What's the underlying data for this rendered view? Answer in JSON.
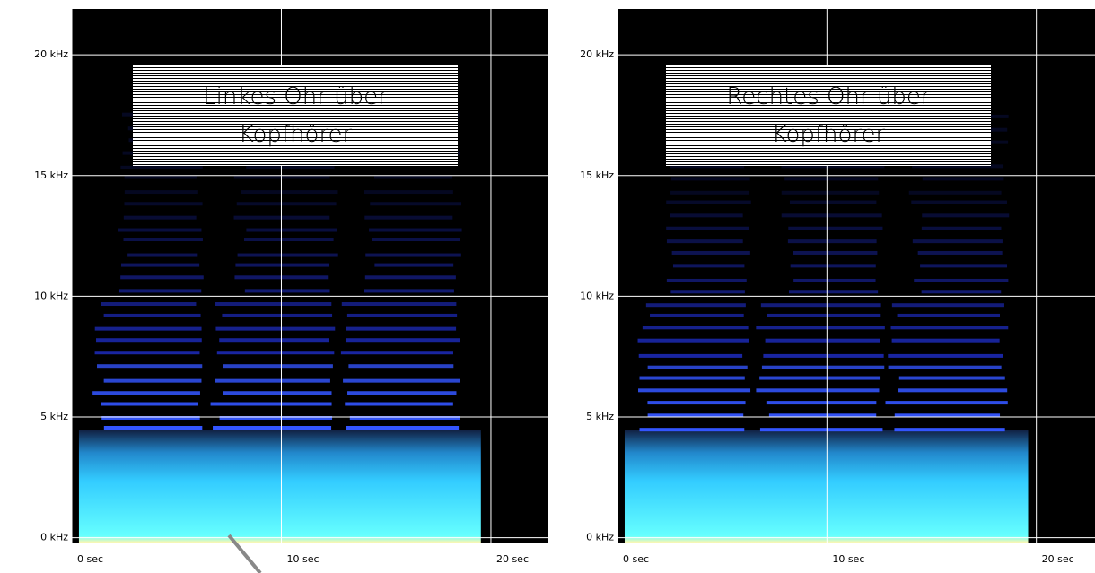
{
  "chart_data": [
    {
      "type": "spectrogram",
      "annotation": "Linkes Ohr über Kopfhörer",
      "xlim": [
        0,
        22.7
      ],
      "ylim": [
        -0.2,
        21.9
      ],
      "xticks": [
        {
          "value": 0,
          "label": "0  sec"
        },
        {
          "value": 10,
          "label": "10 sec"
        },
        {
          "value": 20,
          "label": "20 sec"
        }
      ],
      "yticks": [
        {
          "value": 0,
          "label": "0 kHz"
        },
        {
          "value": 5,
          "label": "5 kHz"
        },
        {
          "value": 10,
          "label": "10 kHz"
        },
        {
          "value": 15,
          "label": "15 kHz"
        },
        {
          "value": 20,
          "label": "20 kHz"
        }
      ],
      "grid": true
    },
    {
      "type": "spectrogram",
      "annotation": "Rechtes Ohr über Kopfhörer",
      "xlim": [
        0,
        22.8
      ],
      "ylim": [
        -0.2,
        21.9
      ],
      "xticks": [
        {
          "value": 0,
          "label": "0  sec"
        },
        {
          "value": 10,
          "label": "10 sec"
        },
        {
          "value": 20,
          "label": "20 sec"
        }
      ],
      "yticks": [
        {
          "value": 0,
          "label": "0 kHz"
        },
        {
          "value": 5,
          "label": "5 kHz"
        },
        {
          "value": 10,
          "label": "10 kHz"
        },
        {
          "value": 15,
          "label": "15 kHz"
        },
        {
          "value": 20,
          "label": "20 kHz"
        }
      ],
      "grid": true
    }
  ]
}
